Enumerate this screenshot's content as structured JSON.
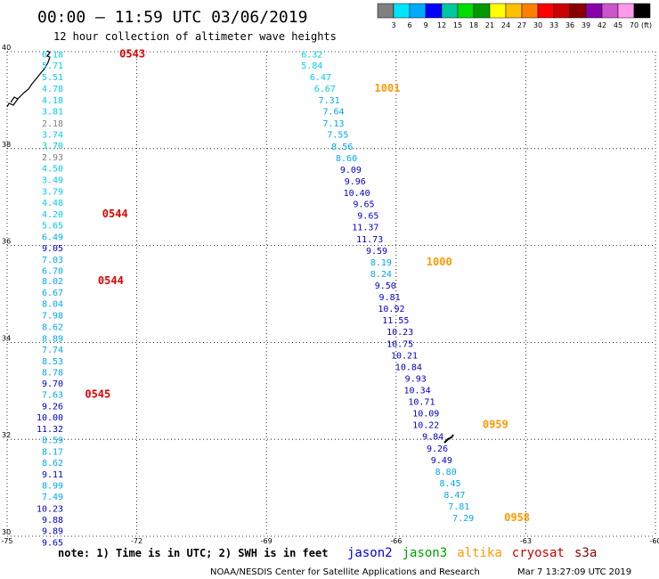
{
  "title": "00:00 – 11:59 UTC 03/06/2019",
  "subtitle": "12 hour collection of altimeter wave heights",
  "note": "note: 1) Time is in UTC; 2) SWH is in feet",
  "credit": "NOAA/NESDIS Center for Satellite Applications and Research",
  "generated": "Mar  7 13:27:09 UTC 2019",
  "colorbar": {
    "unit": "(ft)",
    "labels": [
      "3",
      "6",
      "9",
      "12",
      "15",
      "18",
      "21",
      "24",
      "27",
      "30",
      "33",
      "36",
      "39",
      "42",
      "45",
      "70"
    ],
    "colors": [
      "#808080",
      "#00e5ff",
      "#00aaff",
      "#0000ff",
      "#00c8a0",
      "#00dd00",
      "#009900",
      "#ffff00",
      "#ffc000",
      "#ff8000",
      "#ff0000",
      "#cc0000",
      "#880000",
      "#8800aa",
      "#cc55cc",
      "#ff99ee",
      "#000000"
    ]
  },
  "satellites": [
    {
      "name": "jason2",
      "color": "#0000dd"
    },
    {
      "name": "jason3",
      "color": "#00a000"
    },
    {
      "name": "altika",
      "color": "#ff9900"
    },
    {
      "name": "cryosat",
      "color": "#cc0000"
    },
    {
      "name": "s3a",
      "color": "#8b0000"
    }
  ],
  "chart_data": {
    "type": "scatter",
    "xlim": [
      -75,
      -60
    ],
    "ylim": [
      30,
      40
    ],
    "xticks": [
      "-75",
      "-72",
      "-69",
      "-66",
      "-63",
      "-60"
    ],
    "yticks": [
      "30",
      "32",
      "34",
      "36",
      "38",
      "40"
    ],
    "grid": true,
    "series": [
      {
        "name": "cryosat",
        "color": "#e00000",
        "points": [
          {
            "lon": -73.7,
            "lat": 39.88,
            "v": "6.18",
            "c": "#00ccee"
          },
          {
            "lon": -73.7,
            "lat": 39.65,
            "v": "5.71",
            "c": "#00ccee"
          },
          {
            "lon": -73.7,
            "lat": 39.41,
            "v": "5.51",
            "c": "#00ccee"
          },
          {
            "lon": -73.7,
            "lat": 39.17,
            "v": "4.78",
            "c": "#00ccee"
          },
          {
            "lon": -73.7,
            "lat": 38.93,
            "v": "4.18",
            "c": "#00ccee"
          },
          {
            "lon": -73.7,
            "lat": 38.7,
            "v": "3.81",
            "c": "#00ccee"
          },
          {
            "lon": -73.7,
            "lat": 38.46,
            "v": "2.18",
            "c": "#808080"
          },
          {
            "lon": -73.7,
            "lat": 38.23,
            "v": "3.74",
            "c": "#00ccee"
          },
          {
            "lon": -73.7,
            "lat": 38.0,
            "v": "3.70",
            "c": "#00ccee"
          },
          {
            "lon": -73.7,
            "lat": 37.76,
            "v": "2.93",
            "c": "#808080"
          },
          {
            "lon": -73.7,
            "lat": 37.53,
            "v": "4.50",
            "c": "#00ccee"
          },
          {
            "lon": -73.7,
            "lat": 37.29,
            "v": "3.49",
            "c": "#00ccee"
          },
          {
            "lon": -73.7,
            "lat": 37.05,
            "v": "3.79",
            "c": "#00ccee"
          },
          {
            "lon": -73.7,
            "lat": 36.82,
            "v": "4.48",
            "c": "#00ccee"
          },
          {
            "lon": -73.7,
            "lat": 36.58,
            "v": "4.20",
            "c": "#00ccee"
          },
          {
            "lon": -73.7,
            "lat": 36.35,
            "v": "5.65",
            "c": "#00ccee"
          },
          {
            "lon": -73.7,
            "lat": 36.11,
            "v": "6.49",
            "c": "#00a8ee"
          },
          {
            "lon": -73.7,
            "lat": 35.88,
            "v": "9.05",
            "c": "#0000cc"
          },
          {
            "lon": -73.7,
            "lat": 35.64,
            "v": "7.03",
            "c": "#00a8ee"
          },
          {
            "lon": -73.7,
            "lat": 35.41,
            "v": "6.70",
            "c": "#00a8ee"
          },
          {
            "lon": -73.7,
            "lat": 35.2,
            "v": "8.02",
            "c": "#00a8ee"
          },
          {
            "lon": -73.7,
            "lat": 34.96,
            "v": "6.67",
            "c": "#00a8ee"
          },
          {
            "lon": -73.7,
            "lat": 34.73,
            "v": "8.04",
            "c": "#00a8ee"
          },
          {
            "lon": -73.7,
            "lat": 34.49,
            "v": "7.98",
            "c": "#00a8ee"
          },
          {
            "lon": -73.7,
            "lat": 34.26,
            "v": "8.62",
            "c": "#00a8ee"
          },
          {
            "lon": -73.7,
            "lat": 34.02,
            "v": "8.89",
            "c": "#00a8ee"
          },
          {
            "lon": -73.7,
            "lat": 33.79,
            "v": "7.74",
            "c": "#00a8ee"
          },
          {
            "lon": -73.7,
            "lat": 33.55,
            "v": "8.53",
            "c": "#00a8ee"
          },
          {
            "lon": -73.7,
            "lat": 33.32,
            "v": "8.78",
            "c": "#00a8ee"
          },
          {
            "lon": -73.7,
            "lat": 33.09,
            "v": "9.70",
            "c": "#0000cc"
          },
          {
            "lon": -73.7,
            "lat": 32.86,
            "v": "7.63",
            "c": "#00a8ee"
          },
          {
            "lon": -73.7,
            "lat": 32.62,
            "v": "9.26",
            "c": "#0000cc"
          },
          {
            "lon": -73.7,
            "lat": 32.39,
            "v": "10.00",
            "c": "#0000cc"
          },
          {
            "lon": -73.7,
            "lat": 32.15,
            "v": "11.32",
            "c": "#0000cc"
          },
          {
            "lon": -73.7,
            "lat": 31.92,
            "v": "8.59",
            "c": "#00a8ee"
          },
          {
            "lon": -73.7,
            "lat": 31.68,
            "v": "8.17",
            "c": "#00a8ee"
          },
          {
            "lon": -73.7,
            "lat": 31.45,
            "v": "8.62",
            "c": "#00a8ee"
          },
          {
            "lon": -73.7,
            "lat": 31.21,
            "v": "9.11",
            "c": "#0000cc"
          },
          {
            "lon": -73.7,
            "lat": 30.98,
            "v": "8.99",
            "c": "#00a8ee"
          },
          {
            "lon": -73.7,
            "lat": 30.75,
            "v": "7.49",
            "c": "#00a8ee"
          },
          {
            "lon": -73.7,
            "lat": 30.51,
            "v": "10.23",
            "c": "#0000cc"
          },
          {
            "lon": -73.7,
            "lat": 30.28,
            "v": "9.88",
            "c": "#0000cc"
          },
          {
            "lon": -73.7,
            "lat": 30.05,
            "v": "9.89",
            "c": "#0000cc"
          },
          {
            "lon": -73.7,
            "lat": 29.81,
            "v": "9.65",
            "c": "#0000cc"
          }
        ],
        "times": [
          {
            "lon": -72.4,
            "lat": 39.88,
            "t": "0543"
          },
          {
            "lon": -72.8,
            "lat": 36.58,
            "t": "0544"
          },
          {
            "lon": -72.9,
            "lat": 35.2,
            "t": "0544"
          },
          {
            "lon": -73.2,
            "lat": 32.86,
            "t": "0545"
          }
        ]
      },
      {
        "name": "altika",
        "color": "#ff9900",
        "points": [
          {
            "lon": -67.7,
            "lat": 39.88,
            "v": "6.32",
            "c": "#00ccee"
          },
          {
            "lon": -67.7,
            "lat": 39.65,
            "v": "5.84",
            "c": "#00ccee"
          },
          {
            "lon": -67.5,
            "lat": 39.41,
            "v": "6.47",
            "c": "#00ccee"
          },
          {
            "lon": -67.4,
            "lat": 39.17,
            "v": "6.67",
            "c": "#00ccee"
          },
          {
            "lon": -67.3,
            "lat": 38.93,
            "v": "7.31",
            "c": "#00a8ee"
          },
          {
            "lon": -67.2,
            "lat": 38.7,
            "v": "7.64",
            "c": "#00a8ee"
          },
          {
            "lon": -67.2,
            "lat": 38.46,
            "v": "7.13",
            "c": "#00a8ee"
          },
          {
            "lon": -67.1,
            "lat": 38.23,
            "v": "7.55",
            "c": "#00a8ee"
          },
          {
            "lon": -67.0,
            "lat": 37.98,
            "v": "8.56",
            "c": "#00a8ee"
          },
          {
            "lon": -66.9,
            "lat": 37.74,
            "v": "8.60",
            "c": "#00a8ee"
          },
          {
            "lon": -66.8,
            "lat": 37.5,
            "v": "9.09",
            "c": "#0000cc"
          },
          {
            "lon": -66.7,
            "lat": 37.26,
            "v": "9.96",
            "c": "#0000cc"
          },
          {
            "lon": -66.6,
            "lat": 37.02,
            "v": "10.40",
            "c": "#0000cc"
          },
          {
            "lon": -66.5,
            "lat": 36.79,
            "v": "9.65",
            "c": "#0000cc"
          },
          {
            "lon": -66.4,
            "lat": 36.55,
            "v": "9.65",
            "c": "#0000cc"
          },
          {
            "lon": -66.4,
            "lat": 36.31,
            "v": "11.37",
            "c": "#0000cc"
          },
          {
            "lon": -66.3,
            "lat": 36.07,
            "v": "11.73",
            "c": "#0000cc"
          },
          {
            "lon": -66.2,
            "lat": 35.83,
            "v": "9.59",
            "c": "#0000cc"
          },
          {
            "lon": -66.1,
            "lat": 35.59,
            "v": "8.19",
            "c": "#00a8ee"
          },
          {
            "lon": -66.1,
            "lat": 35.35,
            "v": "8.24",
            "c": "#00a8ee"
          },
          {
            "lon": -66.0,
            "lat": 35.11,
            "v": "9.50",
            "c": "#0000cc"
          },
          {
            "lon": -65.9,
            "lat": 34.87,
            "v": "9.81",
            "c": "#0000cc"
          },
          {
            "lon": -65.8,
            "lat": 34.63,
            "v": "10.92",
            "c": "#0000cc"
          },
          {
            "lon": -65.7,
            "lat": 34.39,
            "v": "11.55",
            "c": "#0000cc"
          },
          {
            "lon": -65.6,
            "lat": 34.15,
            "v": "10.23",
            "c": "#0000cc"
          },
          {
            "lon": -65.6,
            "lat": 33.91,
            "v": "10.75",
            "c": "#0000cc"
          },
          {
            "lon": -65.5,
            "lat": 33.67,
            "v": "10.21",
            "c": "#0000cc"
          },
          {
            "lon": -65.4,
            "lat": 33.43,
            "v": "10.84",
            "c": "#0000cc"
          },
          {
            "lon": -65.3,
            "lat": 33.19,
            "v": "9.93",
            "c": "#0000cc"
          },
          {
            "lon": -65.2,
            "lat": 32.95,
            "v": "10.34",
            "c": "#0000cc"
          },
          {
            "lon": -65.1,
            "lat": 32.71,
            "v": "10.71",
            "c": "#0000cc"
          },
          {
            "lon": -65.0,
            "lat": 32.47,
            "v": "10.09",
            "c": "#0000cc"
          },
          {
            "lon": -65.0,
            "lat": 32.23,
            "v": "10.22",
            "c": "#0000cc"
          },
          {
            "lon": -64.9,
            "lat": 31.99,
            "v": "9.84",
            "c": "#0000cc"
          },
          {
            "lon": -64.8,
            "lat": 31.75,
            "v": "9.26",
            "c": "#0000cc"
          },
          {
            "lon": -64.7,
            "lat": 31.51,
            "v": "9.49",
            "c": "#0000cc"
          },
          {
            "lon": -64.6,
            "lat": 31.27,
            "v": "8.80",
            "c": "#00a8ee"
          },
          {
            "lon": -64.5,
            "lat": 31.03,
            "v": "8.45",
            "c": "#00a8ee"
          },
          {
            "lon": -64.4,
            "lat": 30.79,
            "v": "8.47",
            "c": "#00a8ee"
          },
          {
            "lon": -64.3,
            "lat": 30.55,
            "v": "7.81",
            "c": "#00a8ee"
          },
          {
            "lon": -64.2,
            "lat": 30.31,
            "v": "7.29",
            "c": "#00a8ee"
          }
        ],
        "times": [
          {
            "lon": -66.5,
            "lat": 39.17,
            "t": "1001"
          },
          {
            "lon": -65.3,
            "lat": 35.59,
            "t": "1000"
          },
          {
            "lon": -64.0,
            "lat": 32.23,
            "t": "0959"
          },
          {
            "lon": -63.5,
            "lat": 30.31,
            "t": "0958"
          }
        ]
      }
    ]
  }
}
